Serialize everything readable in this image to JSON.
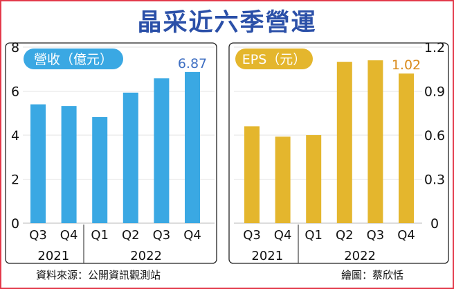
{
  "title": "晶采近六季營運",
  "source": "資料來源：公開資訊觀測站",
  "credit": "繪圖：蔡欣恬",
  "colors": {
    "title": "#2b50a8",
    "revenue": "#3aa8e3",
    "eps": "#e4b62d",
    "revenue_value": "#3f6fc2",
    "eps_value": "#d98a1a",
    "panel_border": "#222222",
    "frame": "#e33a4a"
  },
  "chart_data": [
    {
      "type": "bar",
      "title": "營收（億元）",
      "categories": [
        "Q3",
        "Q4",
        "Q1",
        "Q2",
        "Q3",
        "Q4"
      ],
      "year_groups": [
        {
          "label": "2021",
          "count": 2
        },
        {
          "label": "2022",
          "count": 4
        }
      ],
      "values": [
        5.4,
        5.32,
        4.82,
        5.93,
        6.58,
        6.87
      ],
      "ylim": [
        0,
        8
      ],
      "yticks": [
        "0",
        "2",
        "4",
        "6",
        "8"
      ],
      "ytick_values": [
        0,
        2,
        4,
        6,
        8
      ],
      "axis_side": "left",
      "data_labels": [
        null,
        null,
        null,
        null,
        null,
        "6.87"
      ]
    },
    {
      "type": "bar",
      "title": "EPS（元）",
      "categories": [
        "Q3",
        "Q4",
        "Q1",
        "Q2",
        "Q3",
        "Q4"
      ],
      "year_groups": [
        {
          "label": "2021",
          "count": 2
        },
        {
          "label": "2022",
          "count": 4
        }
      ],
      "values": [
        0.66,
        0.59,
        0.6,
        1.1,
        1.11,
        1.02
      ],
      "ylim": [
        0,
        1.2
      ],
      "yticks": [
        "0",
        "0.3",
        "0.6",
        "0.9",
        "1.2"
      ],
      "ytick_values": [
        0,
        0.3,
        0.6,
        0.9,
        1.2
      ],
      "axis_side": "right",
      "data_labels": [
        null,
        null,
        null,
        null,
        null,
        "1.02"
      ]
    }
  ]
}
